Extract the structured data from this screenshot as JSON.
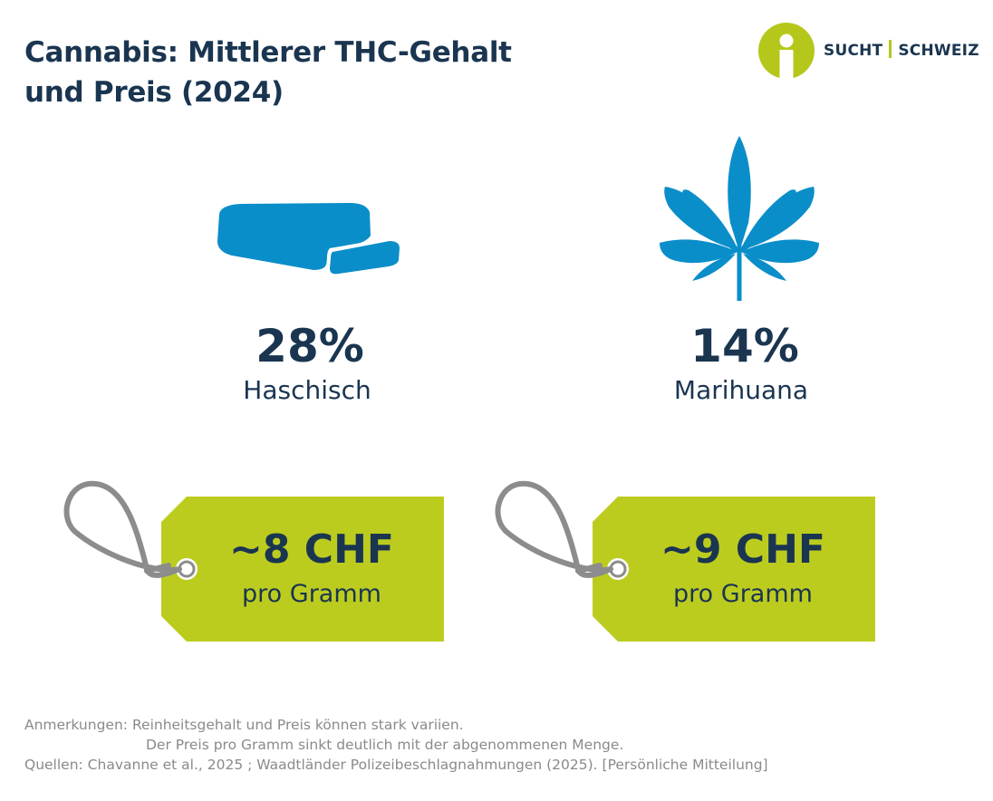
{
  "title_line1": "Cannabis: Mittlerer THC-Gehalt",
  "title_line2": "und Preis (2024)",
  "logo": {
    "part1": "SUCHT",
    "part2": "SCHWEIZ"
  },
  "items": [
    {
      "icon": "hashish-block-icon",
      "thc": "28%",
      "label": "Haschisch",
      "price": "~8 CHF",
      "unit": "pro Gramm"
    },
    {
      "icon": "cannabis-leaf-icon",
      "thc": "14%",
      "label": "Marihuana",
      "price": "~9 CHF",
      "unit": "pro Gramm"
    }
  ],
  "notes": {
    "label": "Anmerkungen:",
    "line1": "Reinheitsgehalt und Preis können stark variien.",
    "line2": "Der Preis pro Gramm sinkt deutlich mit der abgenommenen Menge.",
    "sources": "Quellen: Chavanne et al., 2025 ; Waadtländer Polizeibeschlagnahmungen (2025). [Persönliche Mitteilung]"
  },
  "colors": {
    "navy": "#1a3550",
    "blue": "#0a8ec9",
    "lime": "#bccc1f",
    "grey_string": "#8c8c8c",
    "note_grey": "#8a8a8a"
  }
}
